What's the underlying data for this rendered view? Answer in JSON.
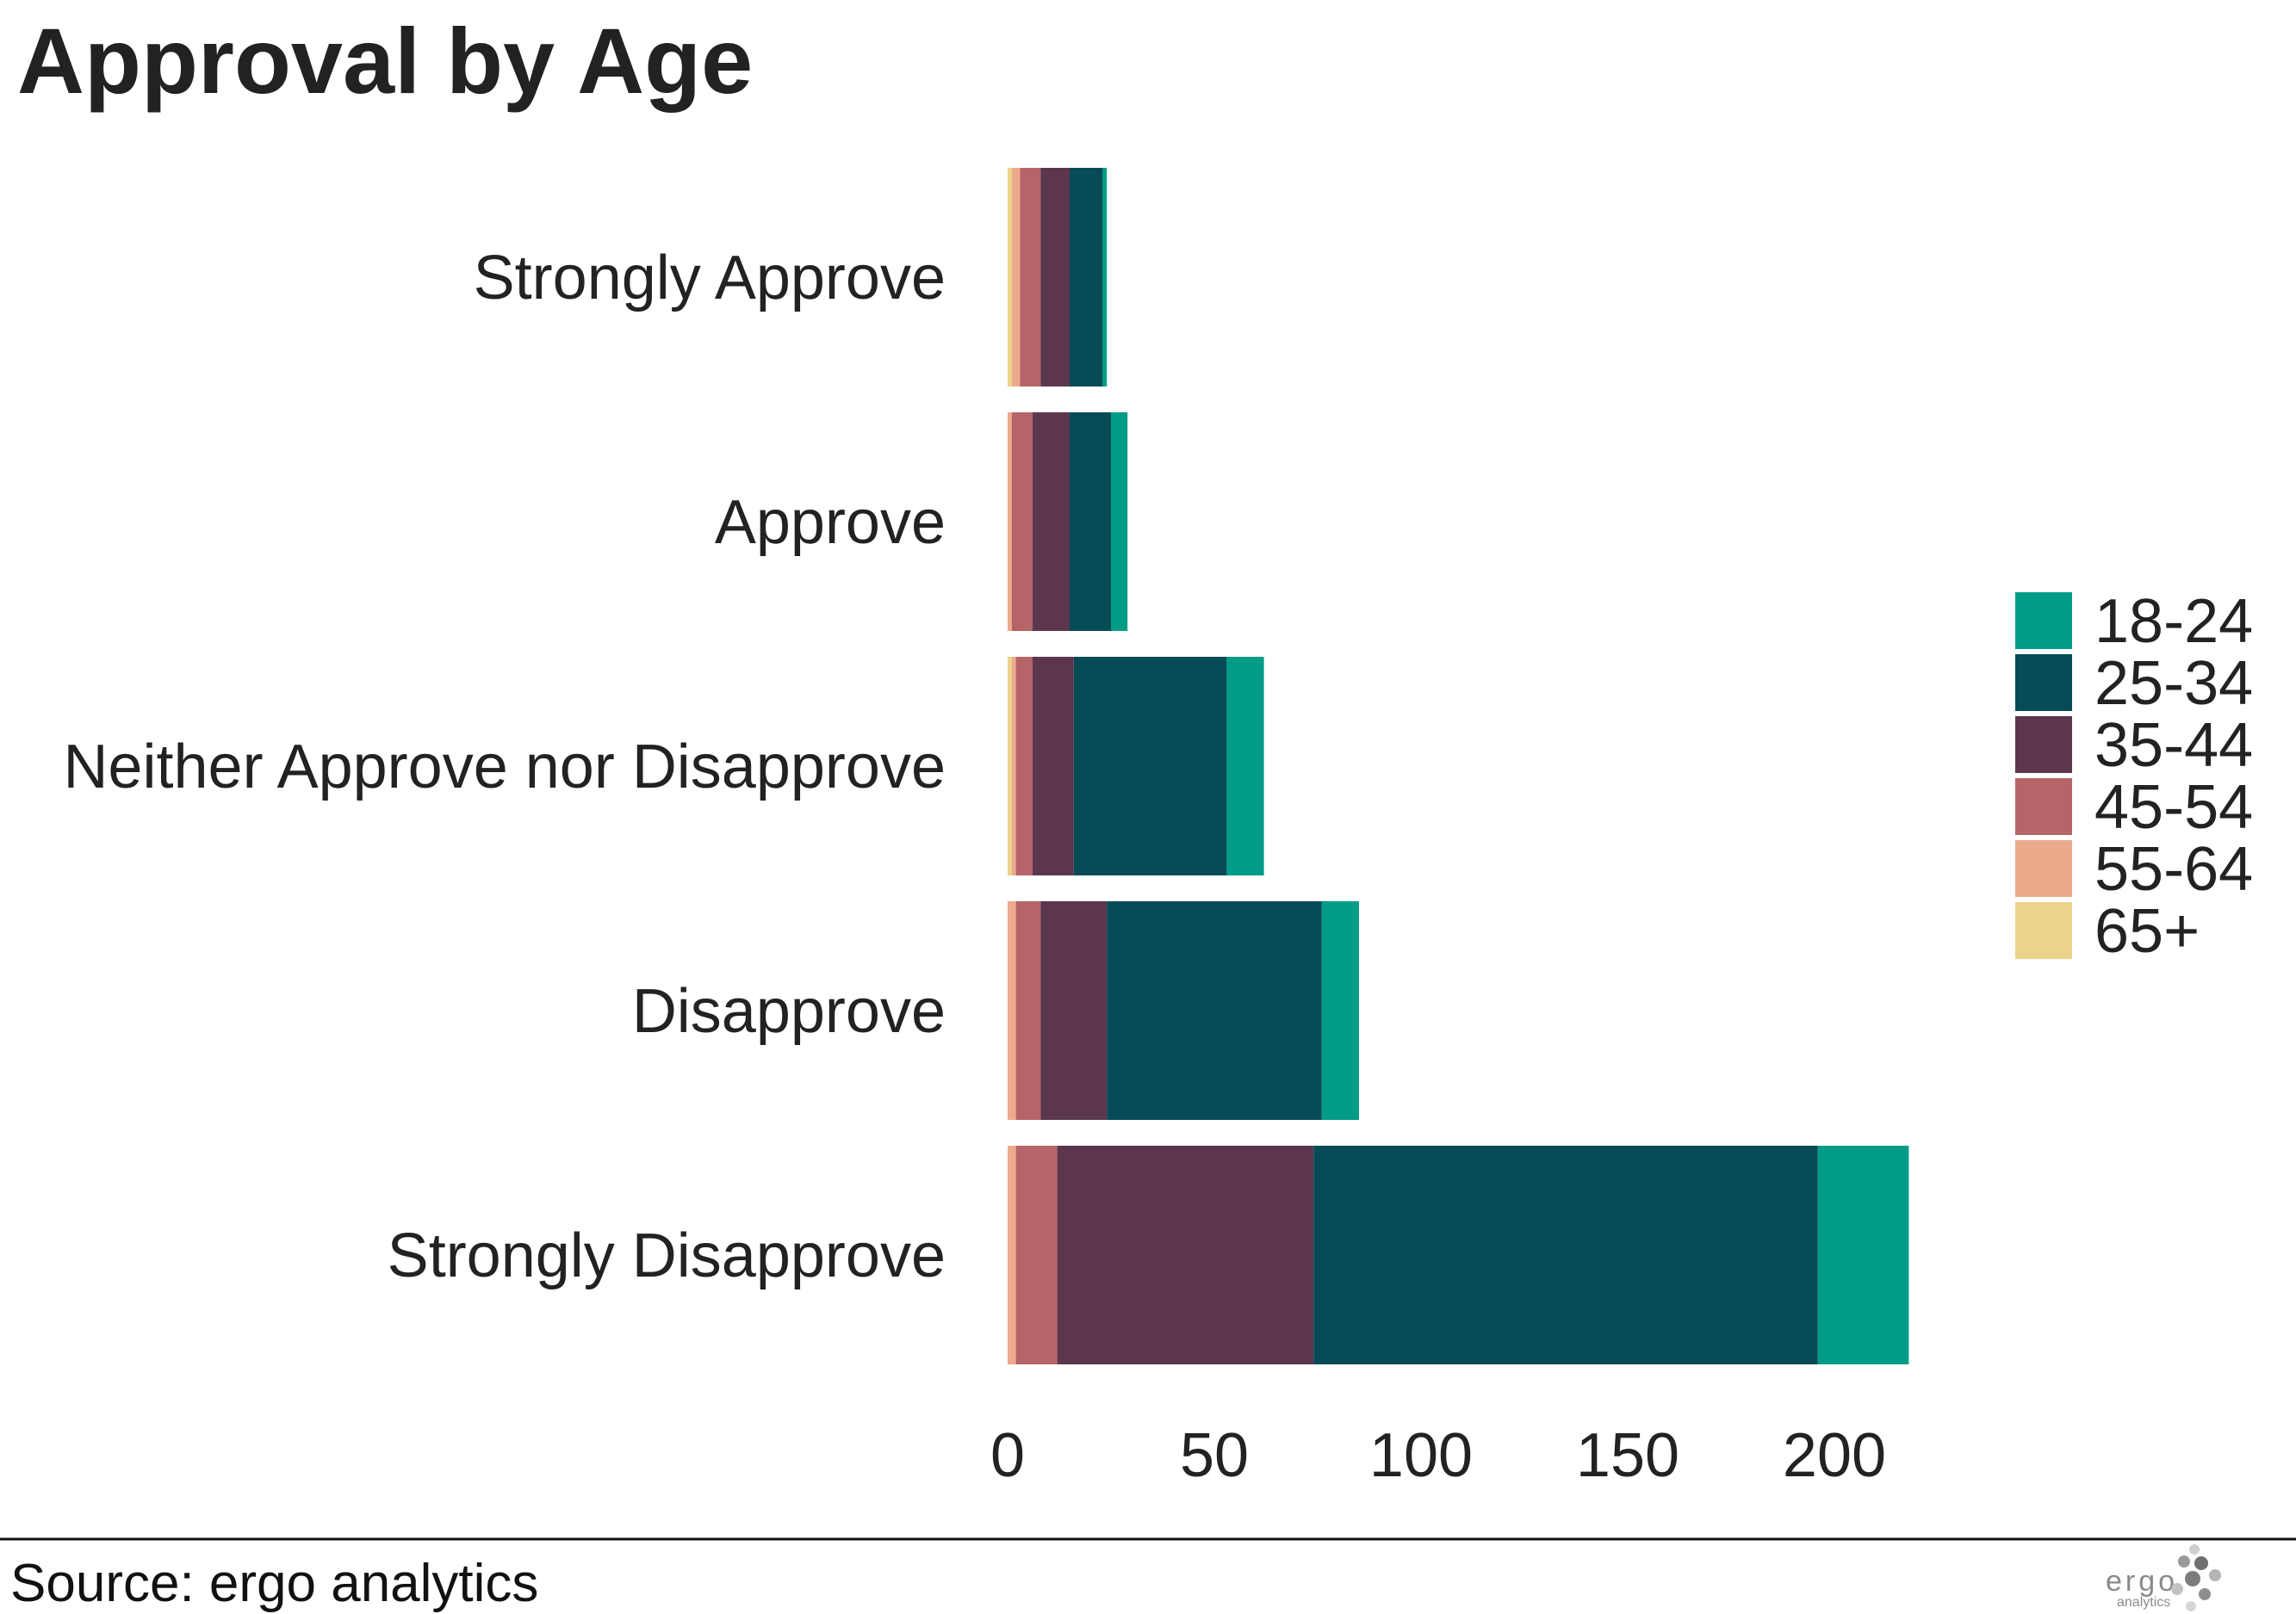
{
  "chart_data": {
    "type": "bar",
    "orientation": "horizontal",
    "stacked": true,
    "title": "Approval by Age",
    "categories": [
      "Strongly Approve",
      "Approve",
      "Neither Approve nor Disapprove",
      "Disapprove",
      "Strongly Disapprove"
    ],
    "series": [
      {
        "name": "65+",
        "color": "#ecd38a",
        "values": [
          1,
          0,
          1,
          0,
          0
        ]
      },
      {
        "name": "55-64",
        "color": "#ecaa8c",
        "values": [
          2,
          1,
          1,
          2,
          2
        ]
      },
      {
        "name": "45-54",
        "color": "#b56468",
        "values": [
          5,
          5,
          4,
          6,
          10
        ]
      },
      {
        "name": "35-44",
        "color": "#5c364d",
        "values": [
          7,
          9,
          10,
          16,
          62
        ]
      },
      {
        "name": "25-34",
        "color": "#074b57",
        "values": [
          8,
          10,
          37,
          52,
          122
        ]
      },
      {
        "name": "18-24",
        "color": "#019c86",
        "values": [
          1,
          4,
          9,
          9,
          22
        ]
      }
    ],
    "legend_order": [
      "18-24",
      "25-34",
      "35-44",
      "45-54",
      "55-64",
      "65+"
    ],
    "xticks": [
      "0",
      "50",
      "100",
      "150",
      "200"
    ],
    "xlim": [
      0,
      225
    ],
    "xlabel": "",
    "ylabel": "",
    "grid": false,
    "legend_position": "right"
  },
  "footer": {
    "source": "Source: ergo analytics",
    "logo_text": "ergo",
    "logo_sub": "analytics"
  }
}
